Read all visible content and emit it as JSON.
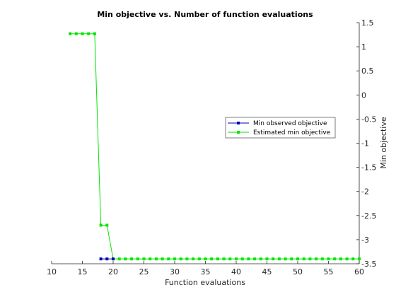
{
  "chart_data": {
    "type": "line",
    "title": "Min objective vs. Number of function evaluations",
    "xlabel": "Function evaluations",
    "ylabel": "Min objective",
    "xlim": [
      10,
      60
    ],
    "ylim": [
      -3.5,
      1.5
    ],
    "xticks": [
      10,
      15,
      20,
      25,
      30,
      35,
      40,
      45,
      50,
      55,
      60
    ],
    "yticks": [
      -3.5,
      -3,
      -2.5,
      -2,
      -1.5,
      -1,
      -0.5,
      0,
      0.5,
      1,
      1.5
    ],
    "xtick_labels": [
      "10",
      "15",
      "20",
      "25",
      "30",
      "35",
      "40",
      "45",
      "50",
      "55",
      "60"
    ],
    "ytick_labels": [
      "-3.5",
      "-3",
      "-2.5",
      "-2",
      "-1.5",
      "-1",
      "-0.5",
      "0",
      "0.5",
      "1",
      "1.5"
    ],
    "y_axis_side": "right",
    "grid": false,
    "legend_placement": "right-middle",
    "series": [
      {
        "name": "Min observed objective",
        "color": "#0000b3",
        "x": [
          18,
          19,
          20
        ],
        "y": [
          -3.4,
          -3.4,
          -3.4
        ]
      },
      {
        "name": "Estimated min objective",
        "color": "#00e600",
        "x": [
          13,
          14,
          15,
          16,
          17,
          18,
          19,
          20,
          21,
          22,
          23,
          24,
          25,
          26,
          27,
          28,
          29,
          30,
          31,
          32,
          33,
          34,
          35,
          36,
          37,
          38,
          39,
          40,
          41,
          42,
          43,
          44,
          45,
          46,
          47,
          48,
          49,
          50,
          51,
          52,
          53,
          54,
          55,
          56,
          57,
          58,
          59,
          60
        ],
        "y": [
          1.27,
          1.27,
          1.27,
          1.27,
          1.27,
          -2.7,
          -2.7,
          -3.4,
          -3.4,
          -3.4,
          -3.4,
          -3.4,
          -3.4,
          -3.4,
          -3.4,
          -3.4,
          -3.4,
          -3.4,
          -3.4,
          -3.4,
          -3.4,
          -3.4,
          -3.4,
          -3.4,
          -3.4,
          -3.4,
          -3.4,
          -3.4,
          -3.4,
          -3.4,
          -3.4,
          -3.4,
          -3.4,
          -3.4,
          -3.4,
          -3.4,
          -3.4,
          -3.4,
          -3.4,
          -3.4,
          -3.4,
          -3.4,
          -3.4,
          -3.4,
          -3.4,
          -3.4,
          -3.4,
          -3.4
        ]
      }
    ]
  }
}
